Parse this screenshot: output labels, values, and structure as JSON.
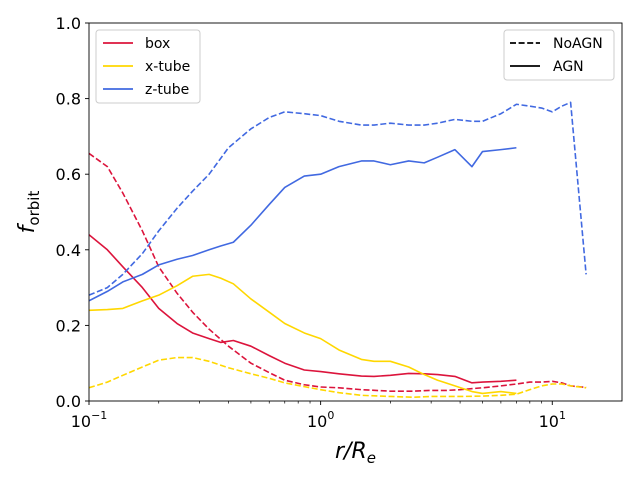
{
  "chart_data": {
    "type": "line",
    "xscale": "log",
    "xlim": [
      0.1,
      20
    ],
    "ylim": [
      0.0,
      1.0
    ],
    "xlabel": "r/Re",
    "ylabel": "f_orbit",
    "x_ticks": [
      {
        "value": 0.1,
        "base": "10",
        "exp": "−1"
      },
      {
        "value": 1,
        "base": "10",
        "exp": "0"
      },
      {
        "value": 10,
        "base": "10",
        "exp": "1"
      }
    ],
    "y_ticks": [
      {
        "value": 0.0,
        "label": "0.0"
      },
      {
        "value": 0.2,
        "label": "0.2"
      },
      {
        "value": 0.4,
        "label": "0.4"
      },
      {
        "value": 0.6,
        "label": "0.6"
      },
      {
        "value": 0.8,
        "label": "0.8"
      },
      {
        "value": 1.0,
        "label": "1.0"
      }
    ],
    "legend_orbits": {
      "placement": "upper-left",
      "entries": [
        {
          "label": "box",
          "color": "#dc143c"
        },
        {
          "label": "x-tube",
          "color": "#ffd700"
        },
        {
          "label": "z-tube",
          "color": "#4169e1"
        }
      ]
    },
    "legend_styles": {
      "placement": "upper-right",
      "entries": [
        {
          "label": "NoAGN",
          "dash": "dashed"
        },
        {
          "label": "AGN",
          "dash": "solid"
        }
      ]
    },
    "series": [
      {
        "orbit": "box",
        "model": "NoAGN",
        "color": "#dc143c",
        "dash": "dashed",
        "x": [
          0.1,
          0.12,
          0.14,
          0.17,
          0.2,
          0.24,
          0.28,
          0.33,
          0.4,
          0.5,
          0.6,
          0.7,
          0.85,
          1.0,
          1.2,
          1.5,
          2.0,
          2.5,
          3.0,
          3.5,
          4.0,
          5.0,
          6.0,
          7.0,
          8.0,
          9.0,
          10.0,
          11.0,
          12.0,
          14.0
        ],
        "y": [
          0.655,
          0.62,
          0.55,
          0.45,
          0.355,
          0.285,
          0.235,
          0.19,
          0.145,
          0.1,
          0.075,
          0.055,
          0.043,
          0.037,
          0.035,
          0.03,
          0.026,
          0.026,
          0.028,
          0.028,
          0.03,
          0.035,
          0.04,
          0.045,
          0.05,
          0.05,
          0.052,
          0.048,
          0.04,
          0.036
        ]
      },
      {
        "orbit": "box",
        "model": "AGN",
        "color": "#dc143c",
        "dash": "solid",
        "x": [
          0.1,
          0.12,
          0.14,
          0.17,
          0.2,
          0.24,
          0.28,
          0.33,
          0.37,
          0.42,
          0.5,
          0.6,
          0.7,
          0.85,
          1.0,
          1.2,
          1.5,
          1.7,
          2.0,
          2.4,
          2.8,
          3.2,
          3.8,
          4.5,
          5.0,
          6.0,
          7.0
        ],
        "y": [
          0.44,
          0.4,
          0.355,
          0.3,
          0.245,
          0.205,
          0.18,
          0.165,
          0.155,
          0.16,
          0.145,
          0.12,
          0.1,
          0.082,
          0.078,
          0.072,
          0.066,
          0.065,
          0.068,
          0.073,
          0.072,
          0.07,
          0.065,
          0.048,
          0.05,
          0.052,
          0.055
        ]
      },
      {
        "orbit": "x-tube",
        "model": "NoAGN",
        "color": "#ffd700",
        "dash": "dashed",
        "x": [
          0.1,
          0.12,
          0.14,
          0.17,
          0.2,
          0.24,
          0.28,
          0.33,
          0.4,
          0.5,
          0.6,
          0.7,
          0.85,
          1.0,
          1.2,
          1.5,
          2.0,
          2.5,
          3.0,
          3.5,
          4.0,
          5.0,
          6.0,
          7.0,
          8.0,
          9.0,
          10.0,
          11.0,
          12.0,
          14.0
        ],
        "y": [
          0.035,
          0.05,
          0.068,
          0.09,
          0.108,
          0.115,
          0.115,
          0.105,
          0.088,
          0.072,
          0.06,
          0.048,
          0.038,
          0.03,
          0.022,
          0.015,
          0.012,
          0.01,
          0.012,
          0.012,
          0.012,
          0.013,
          0.015,
          0.018,
          0.03,
          0.04,
          0.045,
          0.045,
          0.04,
          0.035
        ]
      },
      {
        "orbit": "x-tube",
        "model": "AGN",
        "color": "#ffd700",
        "dash": "solid",
        "x": [
          0.1,
          0.12,
          0.14,
          0.17,
          0.2,
          0.24,
          0.28,
          0.33,
          0.37,
          0.42,
          0.5,
          0.6,
          0.7,
          0.85,
          1.0,
          1.2,
          1.5,
          1.7,
          2.0,
          2.4,
          2.8,
          3.2,
          3.8,
          4.5,
          5.0,
          6.0,
          7.0
        ],
        "y": [
          0.24,
          0.242,
          0.245,
          0.265,
          0.28,
          0.305,
          0.33,
          0.335,
          0.325,
          0.31,
          0.27,
          0.235,
          0.205,
          0.18,
          0.165,
          0.135,
          0.11,
          0.105,
          0.105,
          0.09,
          0.07,
          0.055,
          0.04,
          0.025,
          0.02,
          0.025,
          0.02
        ]
      },
      {
        "orbit": "z-tube",
        "model": "NoAGN",
        "color": "#4169e1",
        "dash": "dashed",
        "x": [
          0.1,
          0.12,
          0.14,
          0.17,
          0.2,
          0.24,
          0.28,
          0.33,
          0.4,
          0.5,
          0.6,
          0.7,
          0.85,
          1.0,
          1.2,
          1.5,
          1.7,
          2.0,
          2.4,
          2.8,
          3.2,
          3.8,
          4.5,
          5.0,
          6.0,
          7.0,
          8.0,
          9.0,
          10.0,
          11.0,
          12.0,
          14.0
        ],
        "y": [
          0.28,
          0.3,
          0.335,
          0.39,
          0.45,
          0.51,
          0.555,
          0.6,
          0.67,
          0.72,
          0.75,
          0.765,
          0.76,
          0.755,
          0.74,
          0.73,
          0.73,
          0.735,
          0.73,
          0.73,
          0.735,
          0.745,
          0.74,
          0.74,
          0.76,
          0.785,
          0.78,
          0.775,
          0.765,
          0.78,
          0.79,
          0.335
        ]
      },
      {
        "orbit": "z-tube",
        "model": "AGN",
        "color": "#4169e1",
        "dash": "solid",
        "x": [
          0.1,
          0.12,
          0.14,
          0.17,
          0.2,
          0.24,
          0.28,
          0.33,
          0.37,
          0.42,
          0.5,
          0.6,
          0.7,
          0.85,
          1.0,
          1.2,
          1.5,
          1.7,
          2.0,
          2.4,
          2.8,
          3.2,
          3.8,
          4.5,
          5.0,
          6.0,
          7.0
        ],
        "y": [
          0.265,
          0.29,
          0.315,
          0.335,
          0.36,
          0.375,
          0.385,
          0.4,
          0.41,
          0.42,
          0.465,
          0.52,
          0.565,
          0.595,
          0.6,
          0.62,
          0.635,
          0.635,
          0.625,
          0.635,
          0.63,
          0.645,
          0.665,
          0.62,
          0.66,
          0.665,
          0.67
        ]
      }
    ]
  }
}
